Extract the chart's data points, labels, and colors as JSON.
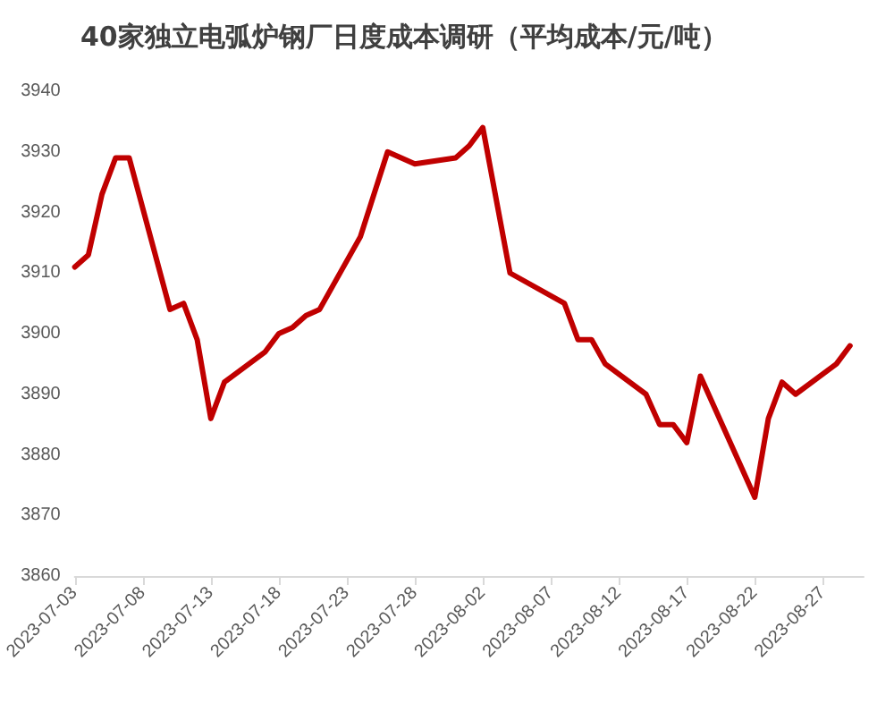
{
  "chart_data": {
    "type": "line",
    "title": "40家独立电弧炉钢厂日度成本调研（平均成本/元/吨）",
    "x": [
      "2023-07-03",
      "2023-07-04",
      "2023-07-05",
      "2023-07-06",
      "2023-07-07",
      "2023-07-10",
      "2023-07-11",
      "2023-07-12",
      "2023-07-13",
      "2023-07-14",
      "2023-07-17",
      "2023-07-18",
      "2023-07-19",
      "2023-07-20",
      "2023-07-21",
      "2023-07-24",
      "2023-07-25",
      "2023-07-26",
      "2023-07-27",
      "2023-07-28",
      "2023-07-31",
      "2023-08-01",
      "2023-08-02",
      "2023-08-04",
      "2023-08-08",
      "2023-08-09",
      "2023-08-10",
      "2023-08-11",
      "2023-08-14",
      "2023-08-15",
      "2023-08-16",
      "2023-08-17",
      "2023-08-18",
      "2023-08-21",
      "2023-08-22",
      "2023-08-23",
      "2023-08-24",
      "2023-08-25",
      "2023-08-28",
      "2023-08-29"
    ],
    "series": [
      {
        "color": "#c00000",
        "values": [
          3911,
          3913,
          3923,
          3929,
          3929,
          3904,
          3905,
          3899,
          3886,
          3892,
          3897,
          3900,
          3901,
          3903,
          3904,
          3916,
          3923,
          3930,
          3929,
          3928,
          3929,
          3931,
          3934,
          3910,
          3905,
          3899,
          3899,
          3895,
          3890,
          3885,
          3885,
          3882,
          3893,
          3878,
          3873,
          3886,
          3892,
          3890,
          3895,
          3898
        ]
      }
    ],
    "xlim": [
      "2023-07-03",
      "2023-08-30"
    ],
    "xticks": [
      "2023-07-03",
      "2023-07-08",
      "2023-07-13",
      "2023-07-18",
      "2023-07-23",
      "2023-07-28",
      "2023-08-02",
      "2023-08-07",
      "2023-08-12",
      "2023-08-17",
      "2023-08-22",
      "2023-08-27"
    ],
    "ylim": [
      3860,
      3940
    ],
    "yticks": [
      3860,
      3870,
      3880,
      3890,
      3900,
      3910,
      3920,
      3930,
      3940
    ],
    "grid": false,
    "marker": "none",
    "line_style": "solid"
  }
}
